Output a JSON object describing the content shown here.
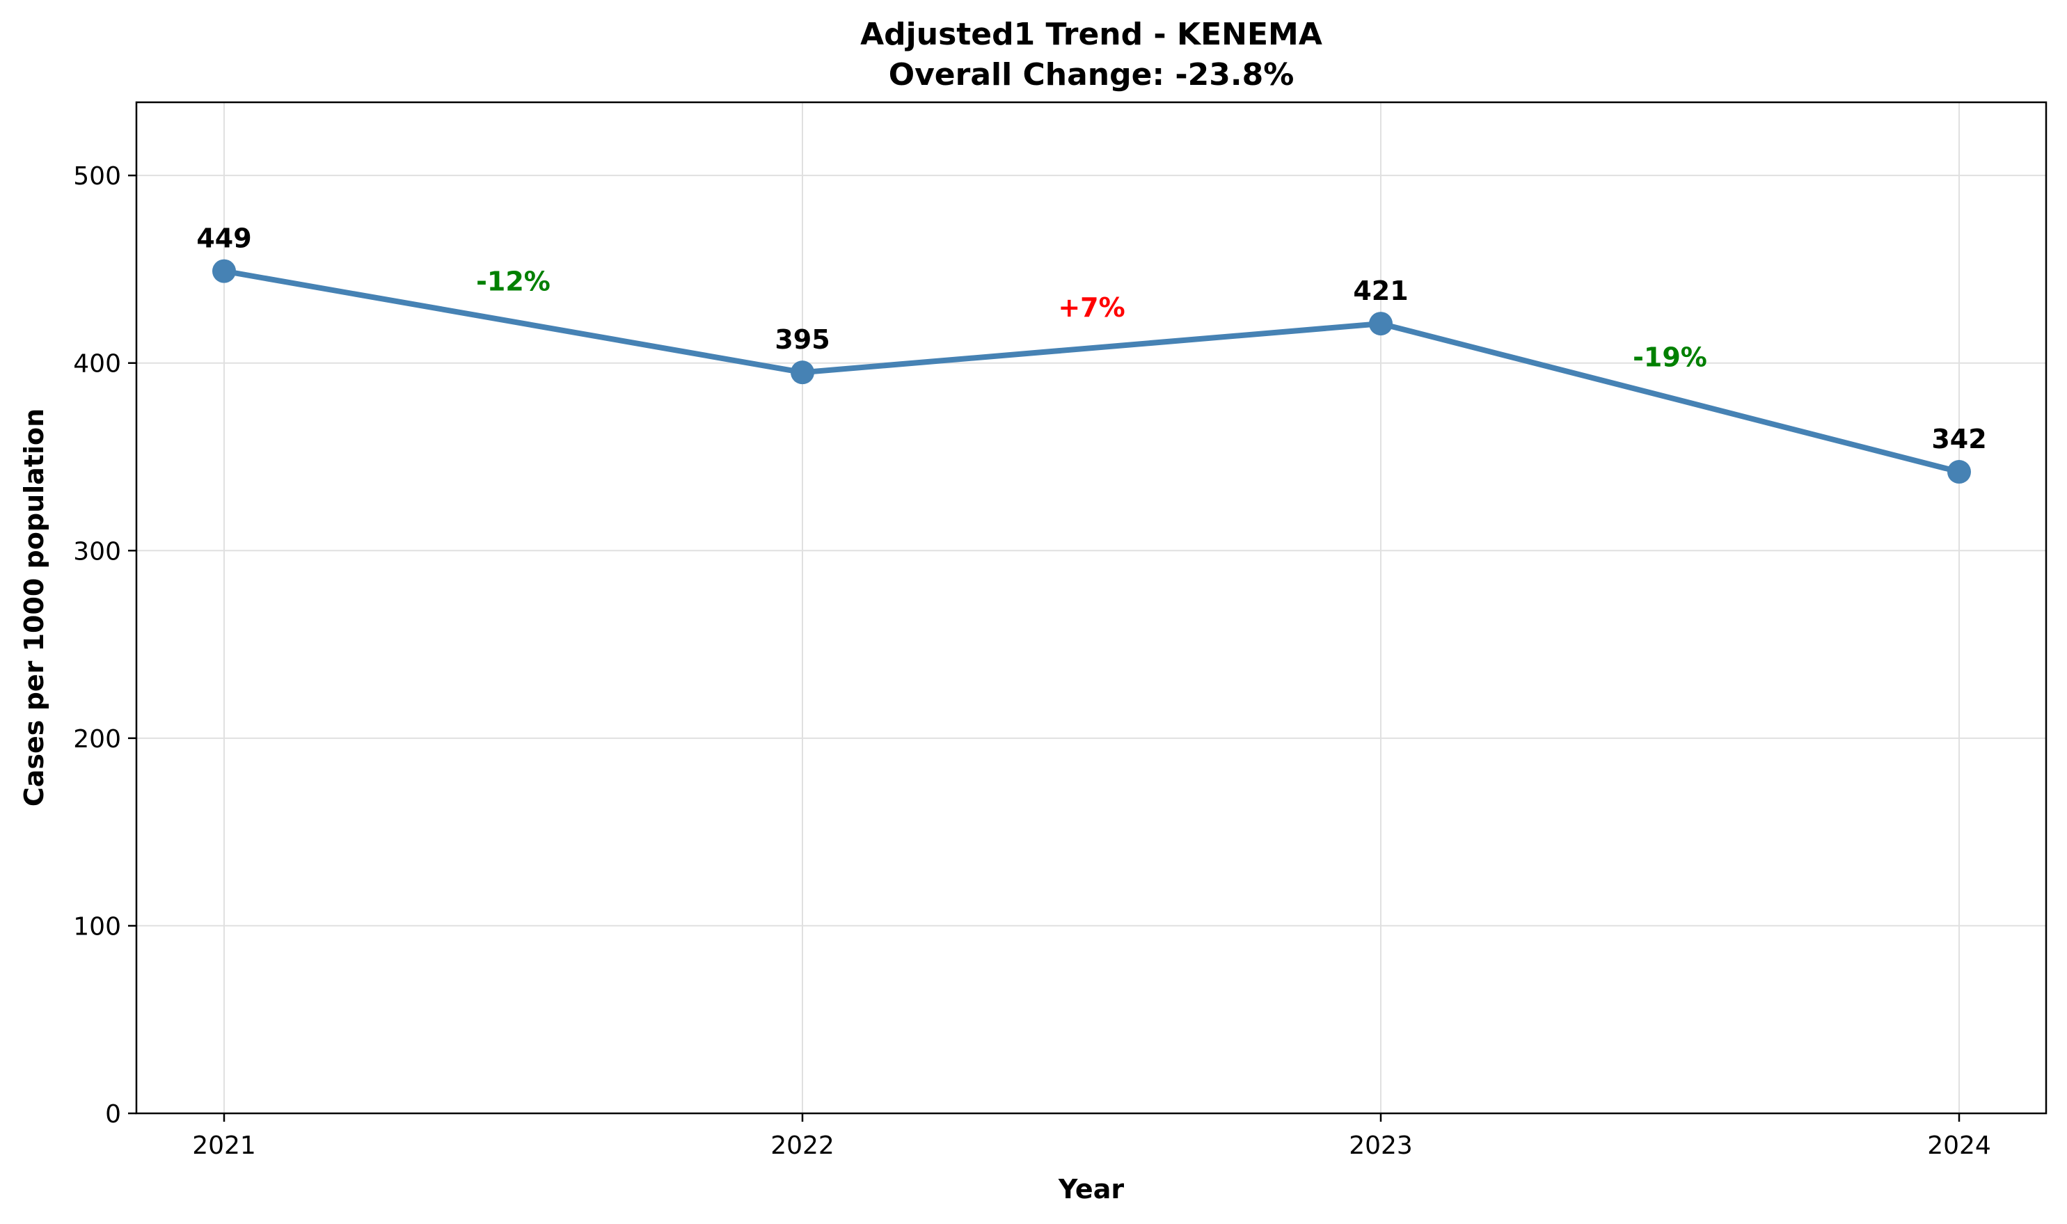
{
  "chart_data": {
    "type": "line",
    "title": "Adjusted1 Trend - KENEMA",
    "subtitle": "Overall Change: -23.8%",
    "xlabel": "Year",
    "ylabel": "Cases per 1000 population",
    "x": [
      "2021",
      "2022",
      "2023",
      "2024"
    ],
    "series": [
      {
        "values": [
          449,
          395,
          421,
          342
        ],
        "color": "#4682b4"
      }
    ],
    "data_labels": [
      "449",
      "395",
      "421",
      "342"
    ],
    "change_annotations": [
      {
        "text": "-12%",
        "color": "#008000",
        "between": [
          0,
          1
        ]
      },
      {
        "text": "+7%",
        "color": "#ff0000",
        "between": [
          1,
          2
        ]
      },
      {
        "text": "-19%",
        "color": "#008000",
        "between": [
          2,
          3
        ]
      }
    ],
    "y_ticks": [
      0,
      100,
      200,
      300,
      400,
      500
    ],
    "ylim": [
      0,
      539
    ],
    "grid": true,
    "legend": "none"
  }
}
